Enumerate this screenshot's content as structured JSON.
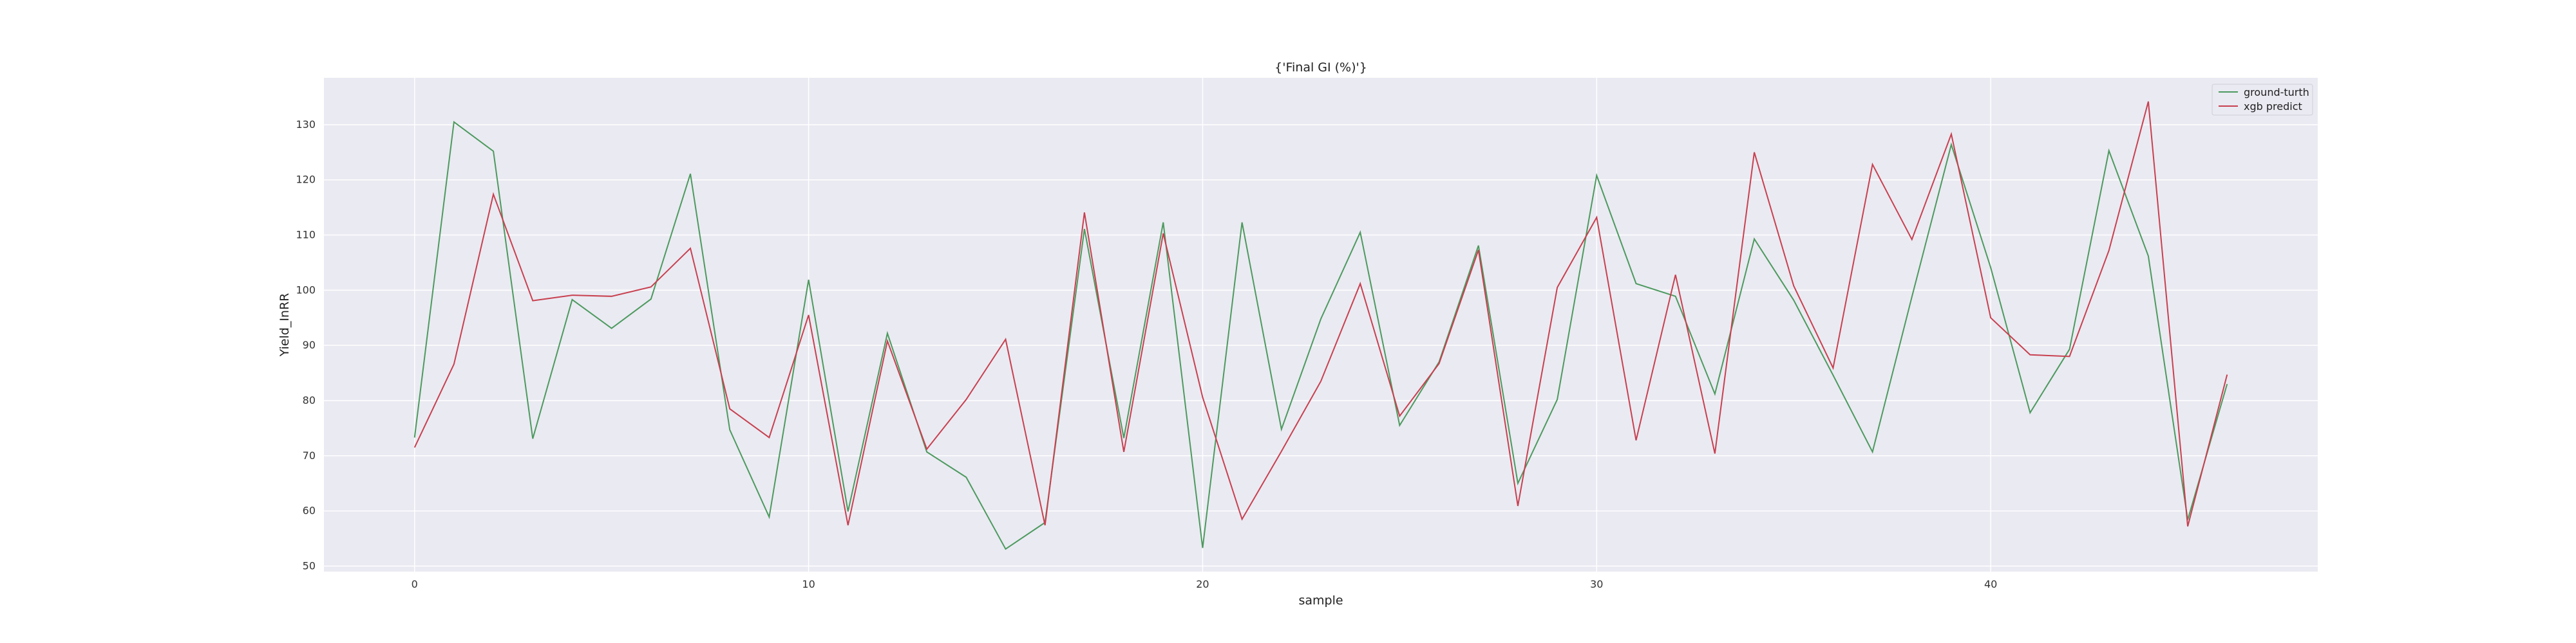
{
  "chart_data": {
    "type": "line",
    "title": "{'Final GI (%)'}",
    "xlabel": "sample",
    "ylabel": "Yield_InRR",
    "xlim": [
      -2.3,
      48.3
    ],
    "ylim": [
      49,
      138.5
    ],
    "xticks": [
      0,
      10,
      20,
      30,
      40
    ],
    "yticks": [
      50,
      60,
      70,
      80,
      90,
      100,
      110,
      120,
      130
    ],
    "grid": true,
    "legend_position": "top-right",
    "colors": {
      "plot_bg": "#eaeaf2",
      "grid": "#ffffff",
      "ground_truth": "#4c9a5e",
      "predict": "#c8404f"
    },
    "series": [
      {
        "name": "ground-turth",
        "color": "#4c9a5e",
        "values": [
          73.3,
          130.5,
          125.2,
          73.1,
          98.3,
          93.1,
          98.4,
          121.1,
          74.7,
          58.9,
          101.9,
          59.9,
          92.2,
          70.7,
          66.1,
          53.1,
          57.9,
          111.1,
          73.2,
          112.3,
          53.3,
          112.3,
          74.8,
          94.8,
          110.5,
          75.5,
          87.0,
          108.1,
          65.0,
          80.2,
          120.8,
          101.2,
          98.9,
          81.2,
          109.3,
          98.2,
          84.6,
          70.7,
          98.8,
          126.4,
          104.1,
          77.8,
          89.3,
          125.3,
          106.2,
          58.4,
          83.0
        ]
      },
      {
        "name": "xgb predict",
        "color": "#c8404f",
        "values": [
          71.5,
          86.6,
          117.4,
          98.1,
          99.1,
          98.9,
          100.6,
          107.6,
          78.5,
          73.3,
          95.5,
          57.4,
          90.8,
          71.2,
          80.2,
          91.1,
          57.4,
          114.1,
          70.7,
          110.3,
          80.6,
          58.5,
          70.8,
          83.5,
          101.2,
          77.2,
          86.7,
          107.3,
          60.9,
          100.5,
          113.2,
          72.8,
          102.8,
          70.4,
          125.0,
          100.8,
          85.9,
          122.8,
          109.2,
          128.3,
          95.0,
          88.3,
          88.0,
          107.2,
          134.2,
          57.2,
          84.7
        ]
      }
    ]
  }
}
